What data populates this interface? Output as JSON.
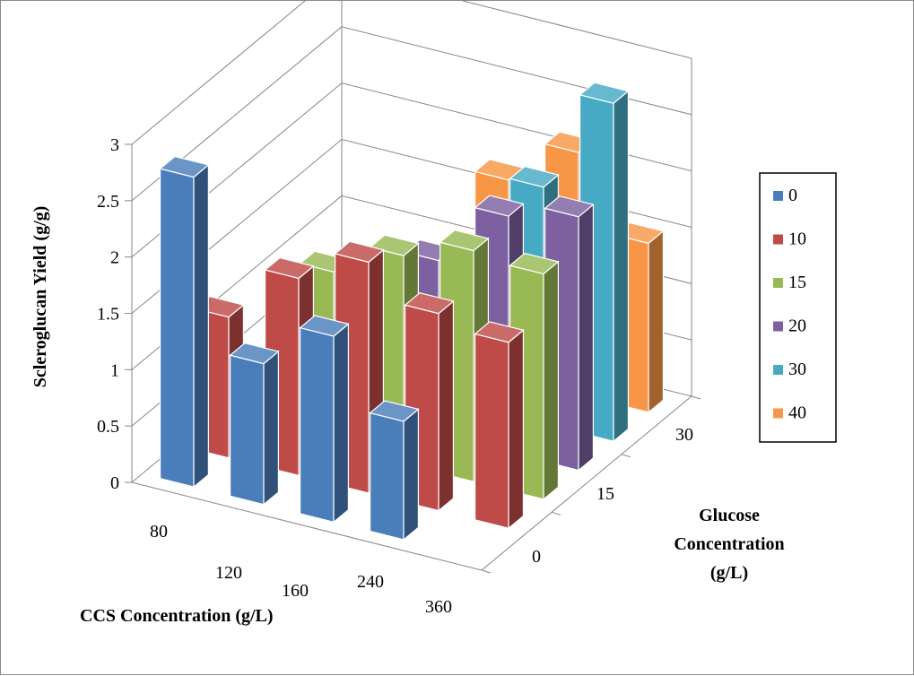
{
  "chart_data": {
    "type": "bar3d",
    "ylabel": "Scleroglucan Yield (g/g)",
    "xlabel": "CCS  Concentration (g/L)",
    "zlabel_lines": [
      "Glucose",
      "Concentration",
      "(g/L)"
    ],
    "x_categories": [
      "80",
      "120",
      "160",
      "240",
      "360"
    ],
    "z_categories": [
      "0",
      "15",
      "30"
    ],
    "ylim": [
      0,
      3
    ],
    "y_ticks": [
      "0",
      "0.5",
      "1",
      "1.5",
      "2",
      "2.5",
      "3"
    ],
    "legend_position": "right",
    "series": [
      {
        "name": "0",
        "color": "#4a7ebb",
        "values": [
          2.75,
          1.25,
          1.65,
          1.05,
          null
        ]
      },
      {
        "name": "10",
        "color": "#be4b48",
        "values": [
          1.25,
          1.75,
          2.05,
          1.75,
          1.65
        ]
      },
      {
        "name": "15",
        "color": "#98b954",
        "values": [
          null,
          1.55,
          1.85,
          2.05,
          2.0
        ]
      },
      {
        "name": "20",
        "color": "#7d60a0",
        "values": [
          0.7,
          0.7,
          1.55,
          2.1,
          2.25
        ]
      },
      {
        "name": "30",
        "color": "#46aac5",
        "values": [
          null,
          0.7,
          0.55,
          2.1,
          3.0
        ]
      },
      {
        "name": "40",
        "color": "#f79646",
        "values": [
          null,
          null,
          1.75,
          2.15,
          1.5
        ]
      }
    ]
  }
}
